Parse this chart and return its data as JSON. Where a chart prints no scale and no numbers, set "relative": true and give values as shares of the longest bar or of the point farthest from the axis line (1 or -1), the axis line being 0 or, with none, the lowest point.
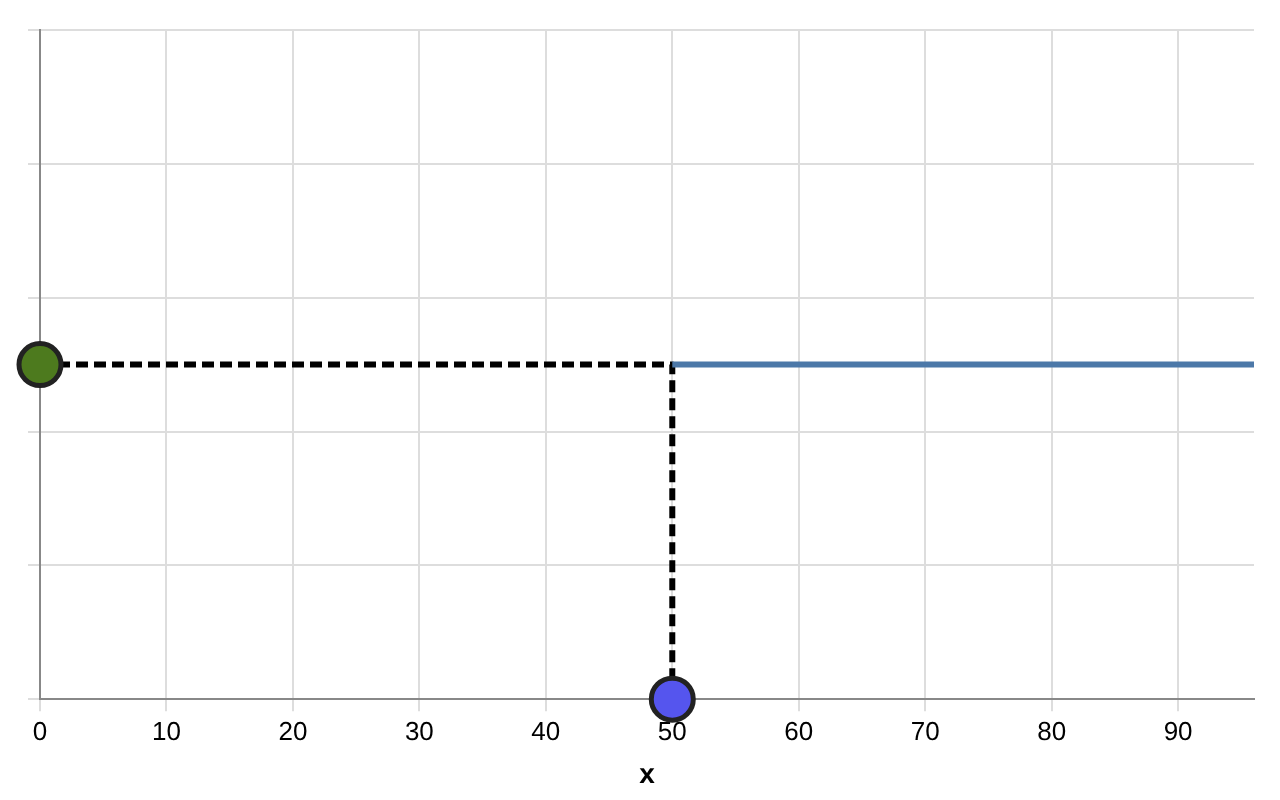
{
  "chart_data": {
    "type": "line",
    "relative": true,
    "xlabel": "x",
    "xlim": [
      0,
      96
    ],
    "xticks": [
      0,
      10,
      20,
      30,
      40,
      50,
      60,
      70,
      80,
      90
    ],
    "grid": true,
    "legend": false,
    "series": [
      {
        "color": "#4c78a8",
        "x": [
          50,
          96
        ],
        "values": [
          1,
          1
        ],
        "marker": "none",
        "line_style": "solid"
      },
      {
        "color": "#000000",
        "x": [
          0,
          50,
          50
        ],
        "values": [
          1,
          1,
          0
        ],
        "marker": "none",
        "line_style": "dashed"
      },
      {
        "type": "scatter",
        "color": "#4d7a1e",
        "x": [
          0
        ],
        "values": [
          1
        ],
        "marker": "circle"
      },
      {
        "type": "scatter",
        "color": "#5555ee",
        "x": [
          50
        ],
        "values": [
          0
        ],
        "marker": "circle"
      }
    ]
  }
}
